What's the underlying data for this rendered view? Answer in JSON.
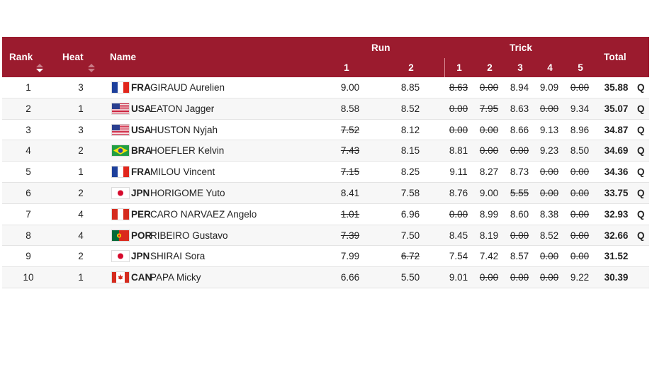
{
  "columns": {
    "rank": "Rank",
    "heat": "Heat",
    "name": "Name",
    "run": "Run",
    "trick": "Trick",
    "total": "Total",
    "run_subs": [
      "1",
      "2"
    ],
    "trick_subs": [
      "1",
      "2",
      "3",
      "4",
      "5"
    ]
  },
  "colors": {
    "header_bg": "#9b1b2e",
    "header_text": "#ffffff"
  },
  "rows": [
    {
      "rank": "1",
      "heat": "3",
      "noc": "FRA",
      "name": "GIRAUD Aurelien",
      "flag": "france",
      "run": [
        "9.00",
        "8.85"
      ],
      "run_struck": [
        false,
        false
      ],
      "trick": [
        "8.63",
        "0.00",
        "8.94",
        "9.09",
        "0.00"
      ],
      "trick_struck": [
        true,
        true,
        false,
        false,
        true
      ],
      "total": "35.88",
      "q": "Q"
    },
    {
      "rank": "2",
      "heat": "1",
      "noc": "USA",
      "name": "EATON Jagger",
      "flag": "usa",
      "run": [
        "8.58",
        "8.52"
      ],
      "run_struck": [
        false,
        false
      ],
      "trick": [
        "0.00",
        "7.95",
        "8.63",
        "0.00",
        "9.34"
      ],
      "trick_struck": [
        true,
        true,
        false,
        true,
        false
      ],
      "total": "35.07",
      "q": "Q"
    },
    {
      "rank": "3",
      "heat": "3",
      "noc": "USA",
      "name": "HUSTON Nyjah",
      "flag": "usa",
      "run": [
        "7.52",
        "8.12"
      ],
      "run_struck": [
        true,
        false
      ],
      "trick": [
        "0.00",
        "0.00",
        "8.66",
        "9.13",
        "8.96"
      ],
      "trick_struck": [
        true,
        true,
        false,
        false,
        false
      ],
      "total": "34.87",
      "q": "Q"
    },
    {
      "rank": "4",
      "heat": "2",
      "noc": "BRA",
      "name": "HOEFLER Kelvin",
      "flag": "brazil",
      "run": [
        "7.43",
        "8.15"
      ],
      "run_struck": [
        true,
        false
      ],
      "trick": [
        "8.81",
        "0.00",
        "0.00",
        "9.23",
        "8.50"
      ],
      "trick_struck": [
        false,
        true,
        true,
        false,
        false
      ],
      "total": "34.69",
      "q": "Q"
    },
    {
      "rank": "5",
      "heat": "1",
      "noc": "FRA",
      "name": "MILOU Vincent",
      "flag": "france",
      "run": [
        "7.15",
        "8.25"
      ],
      "run_struck": [
        true,
        false
      ],
      "trick": [
        "9.11",
        "8.27",
        "8.73",
        "0.00",
        "0.00"
      ],
      "trick_struck": [
        false,
        false,
        false,
        true,
        true
      ],
      "total": "34.36",
      "q": "Q"
    },
    {
      "rank": "6",
      "heat": "2",
      "noc": "JPN",
      "name": "HORIGOME Yuto",
      "flag": "japan",
      "run": [
        "8.41",
        "7.58"
      ],
      "run_struck": [
        false,
        false
      ],
      "trick": [
        "8.76",
        "9.00",
        "5.55",
        "0.00",
        "0.00"
      ],
      "trick_struck": [
        false,
        false,
        true,
        true,
        true
      ],
      "total": "33.75",
      "q": "Q"
    },
    {
      "rank": "7",
      "heat": "4",
      "noc": "PER",
      "name": "CARO NARVAEZ Angelo",
      "flag": "peru",
      "run": [
        "1.01",
        "6.96"
      ],
      "run_struck": [
        true,
        false
      ],
      "trick": [
        "0.00",
        "8.99",
        "8.60",
        "8.38",
        "0.00"
      ],
      "trick_struck": [
        true,
        false,
        false,
        false,
        true
      ],
      "total": "32.93",
      "q": "Q"
    },
    {
      "rank": "8",
      "heat": "4",
      "noc": "POR",
      "name": "RIBEIRO Gustavo",
      "flag": "portugal",
      "run": [
        "7.39",
        "7.50"
      ],
      "run_struck": [
        true,
        false
      ],
      "trick": [
        "8.45",
        "8.19",
        "0.00",
        "8.52",
        "0.00"
      ],
      "trick_struck": [
        false,
        false,
        true,
        false,
        true
      ],
      "total": "32.66",
      "q": "Q"
    },
    {
      "rank": "9",
      "heat": "2",
      "noc": "JPN",
      "name": "SHIRAI Sora",
      "flag": "japan",
      "run": [
        "7.99",
        "6.72"
      ],
      "run_struck": [
        false,
        true
      ],
      "trick": [
        "7.54",
        "7.42",
        "8.57",
        "0.00",
        "0.00"
      ],
      "trick_struck": [
        false,
        false,
        false,
        true,
        true
      ],
      "total": "31.52",
      "q": ""
    },
    {
      "rank": "10",
      "heat": "1",
      "noc": "CAN",
      "name": "PAPA Micky",
      "flag": "canada",
      "run": [
        "6.66",
        "5.50"
      ],
      "run_struck": [
        false,
        false
      ],
      "trick": [
        "9.01",
        "0.00",
        "0.00",
        "0.00",
        "9.22"
      ],
      "trick_struck": [
        false,
        true,
        true,
        true,
        false
      ],
      "total": "30.39",
      "q": ""
    }
  ]
}
